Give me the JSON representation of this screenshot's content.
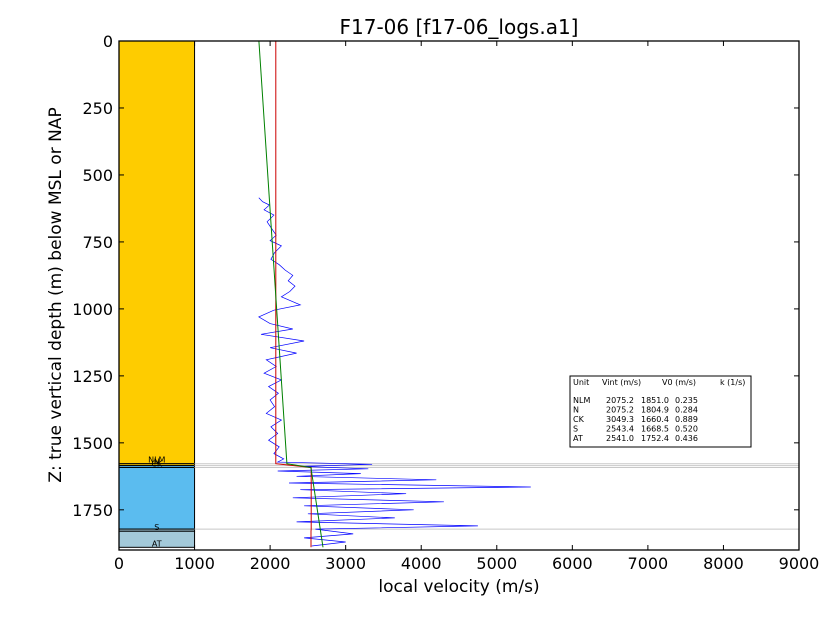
{
  "chart_data": {
    "type": "line",
    "title": "F17-06 [f17-06_logs.a1]",
    "xlabel": "local velocity (m/s)",
    "ylabel": "Z: true vertical depth (m) below MSL or NAP",
    "xlim": [
      0,
      9000
    ],
    "ylim": [
      1900,
      0
    ],
    "y_inverted": true,
    "x_ticks": [
      0,
      1000,
      2000,
      3000,
      4000,
      5000,
      6000,
      7000,
      8000,
      9000
    ],
    "y_ticks": [
      0,
      250,
      500,
      750,
      1000,
      1250,
      1500,
      1750
    ],
    "grid": false,
    "strat_column": {
      "x_range": [
        0,
        1000
      ],
      "units": [
        {
          "name": "NLM",
          "top": 0,
          "base": 1578,
          "color": "#fecc00"
        },
        {
          "name": "N",
          "top": 1578,
          "base": 1585,
          "color": "#fecc00"
        },
        {
          "name": "CK",
          "top": 1585,
          "base": 1592,
          "color": "#5bbcef"
        },
        {
          "name": "",
          "top": 1592,
          "base": 1822,
          "color": "#5bbcef"
        },
        {
          "name": "S",
          "top": 1822,
          "base": 1830,
          "color": "#a3c9d9"
        },
        {
          "name": "AT",
          "top": 1830,
          "base": 1890,
          "color": "#a3c9d9"
        }
      ]
    },
    "boundaries": [
      1578,
      1585,
      1592,
      1822
    ],
    "series": [
      {
        "color": "#0000ff",
        "kind": "log",
        "points": [
          [
            1850,
            585
          ],
          [
            1900,
            600
          ],
          [
            1990,
            612
          ],
          [
            1920,
            630
          ],
          [
            2050,
            650
          ],
          [
            1960,
            675
          ],
          [
            2020,
            700
          ],
          [
            2080,
            725
          ],
          [
            2000,
            745
          ],
          [
            2150,
            765
          ],
          [
            2060,
            790
          ],
          [
            2010,
            815
          ],
          [
            2120,
            835
          ],
          [
            2200,
            855
          ],
          [
            2300,
            875
          ],
          [
            2240,
            895
          ],
          [
            2330,
            915
          ],
          [
            2260,
            935
          ],
          [
            2150,
            955
          ],
          [
            2400,
            985
          ],
          [
            2050,
            1005
          ],
          [
            1850,
            1030
          ],
          [
            2000,
            1055
          ],
          [
            2300,
            1075
          ],
          [
            1880,
            1095
          ],
          [
            2450,
            1120
          ],
          [
            2000,
            1145
          ],
          [
            2350,
            1165
          ],
          [
            1950,
            1190
          ],
          [
            2080,
            1215
          ],
          [
            1920,
            1240
          ],
          [
            2150,
            1265
          ],
          [
            1980,
            1290
          ],
          [
            2110,
            1315
          ],
          [
            2000,
            1340
          ],
          [
            2060,
            1365
          ],
          [
            1950,
            1390
          ],
          [
            2150,
            1415
          ],
          [
            2010,
            1440
          ],
          [
            2100,
            1465
          ],
          [
            1980,
            1490
          ],
          [
            2120,
            1515
          ],
          [
            2050,
            1540
          ],
          [
            2180,
            1560
          ],
          [
            2100,
            1572
          ],
          [
            3350,
            1580
          ],
          [
            2400,
            1588
          ],
          [
            3300,
            1597
          ],
          [
            2100,
            1605
          ],
          [
            3200,
            1615
          ],
          [
            2350,
            1625
          ],
          [
            4200,
            1638
          ],
          [
            2250,
            1650
          ],
          [
            5450,
            1665
          ],
          [
            2400,
            1675
          ],
          [
            3800,
            1690
          ],
          [
            2300,
            1705
          ],
          [
            4300,
            1720
          ],
          [
            2450,
            1735
          ],
          [
            3900,
            1750
          ],
          [
            2500,
            1765
          ],
          [
            3650,
            1780
          ],
          [
            2350,
            1795
          ],
          [
            4750,
            1810
          ],
          [
            2600,
            1822
          ],
          [
            3100,
            1840
          ],
          [
            2450,
            1855
          ],
          [
            3000,
            1870
          ],
          [
            2550,
            1885
          ]
        ]
      },
      {
        "color": "#cc0000",
        "kind": "interval-velocity",
        "points": [
          [
            2075.2,
            0
          ],
          [
            2075.2,
            1578
          ],
          [
            2543.4,
            1592
          ],
          [
            2543.4,
            1822
          ],
          [
            2541,
            1830
          ],
          [
            2541,
            1890
          ]
        ]
      },
      {
        "color": "#008000",
        "kind": "linear-trend",
        "points": [
          [
            1851,
            0
          ],
          [
            2222,
            1578
          ],
          [
            2540,
            1592
          ],
          [
            2700,
            1890
          ]
        ]
      }
    ],
    "legend_box": {
      "placement": "right",
      "headers": [
        "Unit",
        "Vint (m/s)",
        "V0 (m/s)",
        "k (1/s)"
      ],
      "rows": [
        {
          "unit": "NLM",
          "vint": "2075.2",
          "v0": "1851.0",
          "k": "0.235"
        },
        {
          "unit": "N",
          "vint": "2075.2",
          "v0": "1804.9",
          "k": "0.284"
        },
        {
          "unit": "CK",
          "vint": "3049.3",
          "v0": "1660.4",
          "k": "0.889"
        },
        {
          "unit": "S",
          "vint": "2543.4",
          "v0": "1668.5",
          "k": "0.520"
        },
        {
          "unit": "AT",
          "vint": "2541.0",
          "v0": "1752.4",
          "k": "0.436"
        }
      ]
    }
  }
}
